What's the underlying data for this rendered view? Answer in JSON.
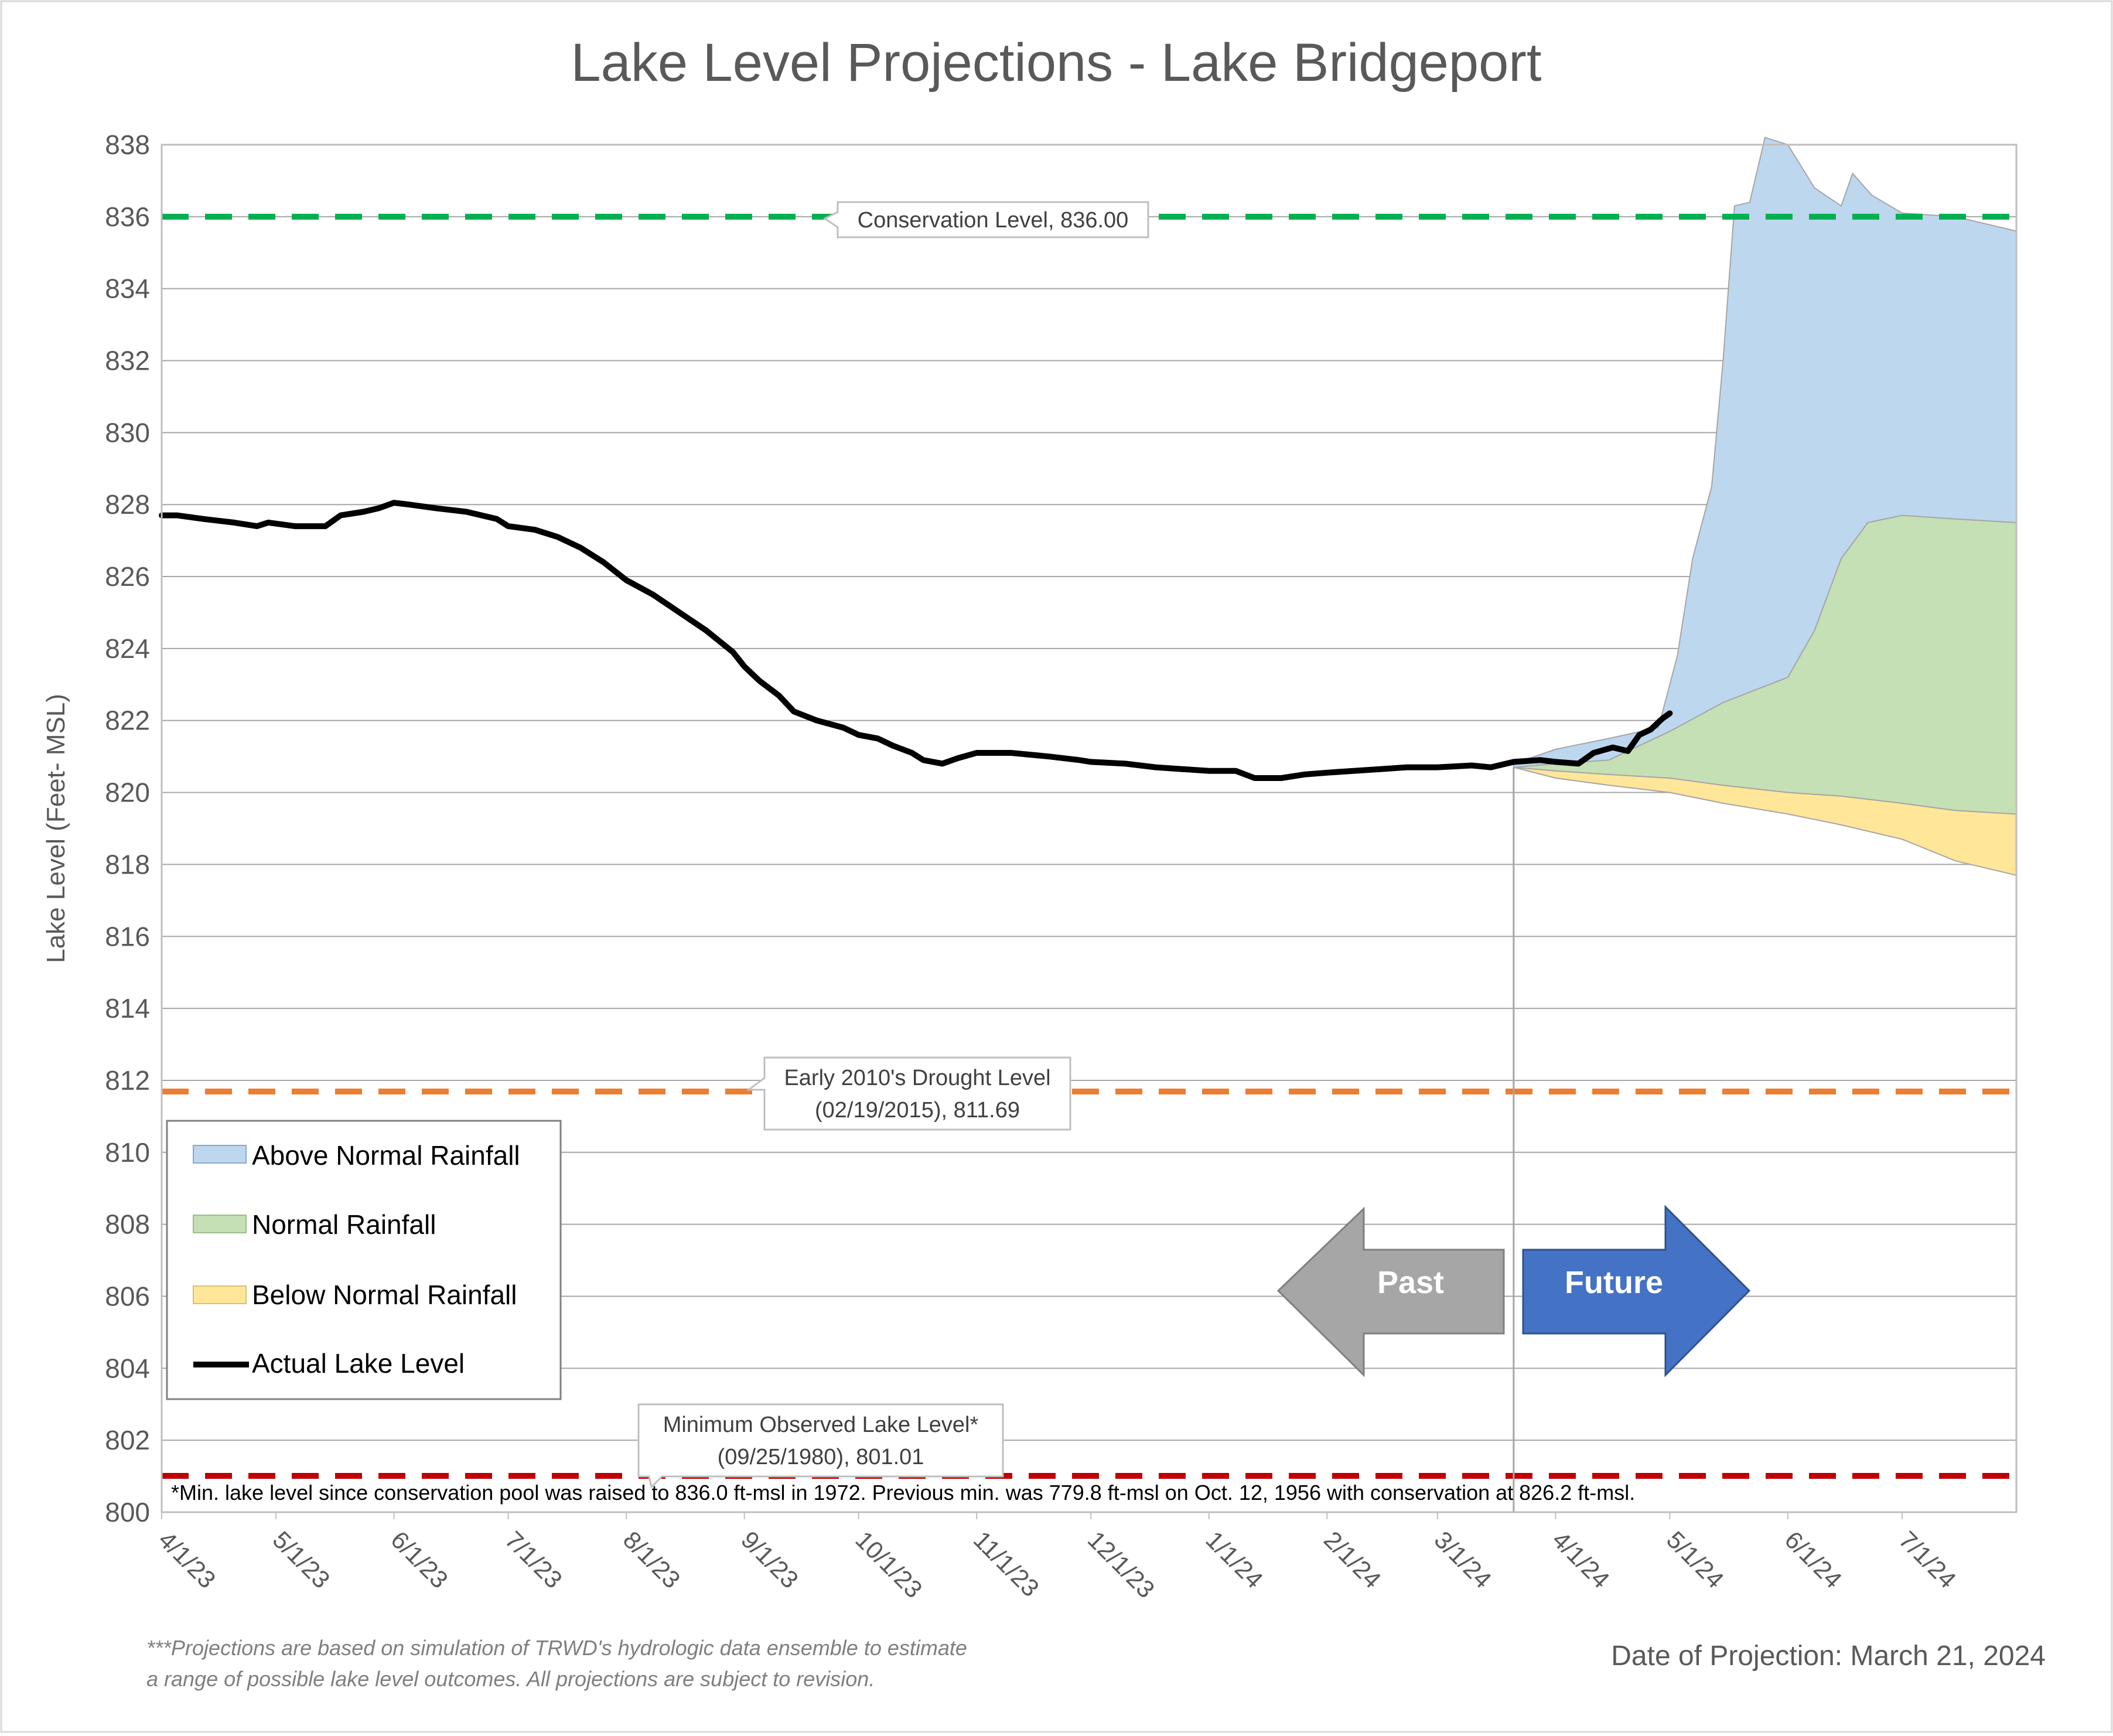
{
  "chart_data": {
    "type": "area",
    "title": "Lake Level Projections - Lake Bridgeport",
    "ylabel": "Lake Level (Feet- MSL)",
    "xlabel": "",
    "ylim": [
      800,
      838
    ],
    "y_ticks": [
      800,
      802,
      804,
      806,
      808,
      810,
      812,
      814,
      816,
      818,
      820,
      822,
      824,
      826,
      828,
      830,
      832,
      834,
      836,
      838
    ],
    "x_range": [
      "2023-04-01",
      "2024-07-31"
    ],
    "x_ticks": [
      {
        "date": "2023-04-01",
        "label": "4/1/23"
      },
      {
        "date": "2023-05-01",
        "label": "5/1/23"
      },
      {
        "date": "2023-06-01",
        "label": "6/1/23"
      },
      {
        "date": "2023-07-01",
        "label": "7/1/23"
      },
      {
        "date": "2023-08-01",
        "label": "8/1/23"
      },
      {
        "date": "2023-09-01",
        "label": "9/1/23"
      },
      {
        "date": "2023-10-01",
        "label": "10/1/23"
      },
      {
        "date": "2023-11-01",
        "label": "11/1/23"
      },
      {
        "date": "2023-12-01",
        "label": "12/1/23"
      },
      {
        "date": "2024-01-01",
        "label": "1/1/24"
      },
      {
        "date": "2024-02-01",
        "label": "2/1/24"
      },
      {
        "date": "2024-03-01",
        "label": "3/1/24"
      },
      {
        "date": "2024-04-01",
        "label": "4/1/24"
      },
      {
        "date": "2024-05-01",
        "label": "5/1/24"
      },
      {
        "date": "2024-06-01",
        "label": "6/1/24"
      },
      {
        "date": "2024-07-01",
        "label": "7/1/24"
      }
    ],
    "grid": "horizontal",
    "legend_position": "lower-left",
    "series": [
      {
        "name": "Actual Lake Level",
        "color": "#000000",
        "points": [
          [
            "2023-04-01",
            827.7
          ],
          [
            "2023-04-05",
            827.7
          ],
          [
            "2023-04-12",
            827.6
          ],
          [
            "2023-04-20",
            827.5
          ],
          [
            "2023-04-26",
            827.4
          ],
          [
            "2023-04-29",
            827.5
          ],
          [
            "2023-05-06",
            827.4
          ],
          [
            "2023-05-14",
            827.4
          ],
          [
            "2023-05-18",
            827.7
          ],
          [
            "2023-05-24",
            827.8
          ],
          [
            "2023-05-28",
            827.9
          ],
          [
            "2023-06-01",
            828.05
          ],
          [
            "2023-06-05",
            828.0
          ],
          [
            "2023-06-12",
            827.9
          ],
          [
            "2023-06-20",
            827.8
          ],
          [
            "2023-06-28",
            827.6
          ],
          [
            "2023-07-01",
            827.4
          ],
          [
            "2023-07-08",
            827.3
          ],
          [
            "2023-07-14",
            827.1
          ],
          [
            "2023-07-20",
            826.8
          ],
          [
            "2023-07-26",
            826.4
          ],
          [
            "2023-08-01",
            825.9
          ],
          [
            "2023-08-08",
            825.5
          ],
          [
            "2023-08-15",
            825.0
          ],
          [
            "2023-08-22",
            824.5
          ],
          [
            "2023-08-29",
            823.9
          ],
          [
            "2023-09-01",
            823.5
          ],
          [
            "2023-09-05",
            823.1
          ],
          [
            "2023-09-10",
            822.7
          ],
          [
            "2023-09-14",
            822.25
          ],
          [
            "2023-09-20",
            822.0
          ],
          [
            "2023-09-27",
            821.8
          ],
          [
            "2023-10-01",
            821.6
          ],
          [
            "2023-10-06",
            821.5
          ],
          [
            "2023-10-10",
            821.3
          ],
          [
            "2023-10-15",
            821.1
          ],
          [
            "2023-10-18",
            820.9
          ],
          [
            "2023-10-23",
            820.8
          ],
          [
            "2023-10-27",
            820.95
          ],
          [
            "2023-11-01",
            821.1
          ],
          [
            "2023-11-10",
            821.1
          ],
          [
            "2023-11-20",
            821.0
          ],
          [
            "2023-11-28",
            820.9
          ],
          [
            "2023-12-01",
            820.85
          ],
          [
            "2023-12-10",
            820.8
          ],
          [
            "2023-12-18",
            820.7
          ],
          [
            "2023-12-25",
            820.65
          ],
          [
            "2024-01-01",
            820.6
          ],
          [
            "2024-01-08",
            820.6
          ],
          [
            "2024-01-13",
            820.4
          ],
          [
            "2024-01-20",
            820.4
          ],
          [
            "2024-01-26",
            820.5
          ],
          [
            "2024-02-01",
            820.55
          ],
          [
            "2024-02-08",
            820.6
          ],
          [
            "2024-02-15",
            820.65
          ],
          [
            "2024-02-22",
            820.7
          ],
          [
            "2024-03-01",
            820.7
          ],
          [
            "2024-03-10",
            820.75
          ],
          [
            "2024-03-15",
            820.7
          ],
          [
            "2024-03-21",
            820.85
          ],
          [
            "2024-03-28",
            820.9
          ],
          [
            "2024-04-01",
            820.85
          ],
          [
            "2024-04-07",
            820.8
          ],
          [
            "2024-04-11",
            821.1
          ],
          [
            "2024-04-16",
            821.25
          ],
          [
            "2024-04-20",
            821.15
          ],
          [
            "2024-04-23",
            821.6
          ],
          [
            "2024-04-26",
            821.75
          ],
          [
            "2024-04-29",
            822.05
          ],
          [
            "2024-05-01",
            822.2
          ]
        ]
      },
      {
        "name": "Below Normal Rainfall",
        "color": "#FFE699",
        "upper": [
          [
            "2024-03-21",
            820.7
          ],
          [
            "2024-04-01",
            820.6
          ],
          [
            "2024-04-15",
            820.5
          ],
          [
            "2024-05-01",
            820.4
          ],
          [
            "2024-05-15",
            820.2
          ],
          [
            "2024-06-01",
            820.0
          ],
          [
            "2024-06-15",
            819.9
          ],
          [
            "2024-07-01",
            819.7
          ],
          [
            "2024-07-15",
            819.5
          ],
          [
            "2024-07-31",
            819.4
          ]
        ],
        "lower": [
          [
            "2024-03-21",
            820.7
          ],
          [
            "2024-04-01",
            820.4
          ],
          [
            "2024-04-15",
            820.2
          ],
          [
            "2024-05-01",
            820.0
          ],
          [
            "2024-05-15",
            819.7
          ],
          [
            "2024-06-01",
            819.4
          ],
          [
            "2024-06-15",
            819.1
          ],
          [
            "2024-07-01",
            818.7
          ],
          [
            "2024-07-15",
            818.1
          ],
          [
            "2024-07-31",
            817.7
          ]
        ]
      },
      {
        "name": "Normal Rainfall",
        "color": "#C5E0B4",
        "upper": [
          [
            "2024-03-21",
            820.7
          ],
          [
            "2024-04-01",
            820.8
          ],
          [
            "2024-04-15",
            820.9
          ],
          [
            "2024-05-01",
            821.7
          ],
          [
            "2024-05-15",
            822.5
          ],
          [
            "2024-06-01",
            823.2
          ],
          [
            "2024-06-08",
            824.5
          ],
          [
            "2024-06-15",
            826.5
          ],
          [
            "2024-06-22",
            827.5
          ],
          [
            "2024-07-01",
            827.7
          ],
          [
            "2024-07-15",
            827.6
          ],
          [
            "2024-07-31",
            827.5
          ]
        ],
        "lower": [
          [
            "2024-03-21",
            820.7
          ],
          [
            "2024-04-01",
            820.6
          ],
          [
            "2024-04-15",
            820.5
          ],
          [
            "2024-05-01",
            820.4
          ],
          [
            "2024-05-15",
            820.2
          ],
          [
            "2024-06-01",
            820.0
          ],
          [
            "2024-06-15",
            819.9
          ],
          [
            "2024-07-01",
            819.7
          ],
          [
            "2024-07-15",
            819.5
          ],
          [
            "2024-07-31",
            819.4
          ]
        ]
      },
      {
        "name": "Above Normal Rainfall",
        "color": "#BDD7EE",
        "upper": [
          [
            "2024-03-21",
            820.8
          ],
          [
            "2024-04-01",
            821.2
          ],
          [
            "2024-04-15",
            821.5
          ],
          [
            "2024-04-28",
            821.8
          ],
          [
            "2024-05-03",
            823.8
          ],
          [
            "2024-05-07",
            826.5
          ],
          [
            "2024-05-12",
            828.5
          ],
          [
            "2024-05-15",
            832.0
          ],
          [
            "2024-05-18",
            836.3
          ],
          [
            "2024-05-22",
            836.4
          ],
          [
            "2024-05-26",
            838.2
          ],
          [
            "2024-06-01",
            838.0
          ],
          [
            "2024-06-08",
            836.8
          ],
          [
            "2024-06-15",
            836.3
          ],
          [
            "2024-06-18",
            837.2
          ],
          [
            "2024-06-23",
            836.6
          ],
          [
            "2024-07-01",
            836.1
          ],
          [
            "2024-07-15",
            836.0
          ],
          [
            "2024-07-31",
            835.6
          ]
        ],
        "lower": [
          [
            "2024-03-21",
            820.7
          ],
          [
            "2024-04-01",
            820.8
          ],
          [
            "2024-04-15",
            820.9
          ],
          [
            "2024-05-01",
            821.7
          ],
          [
            "2024-05-15",
            822.5
          ],
          [
            "2024-06-01",
            823.2
          ],
          [
            "2024-06-08",
            824.5
          ],
          [
            "2024-06-15",
            826.5
          ],
          [
            "2024-06-22",
            827.5
          ],
          [
            "2024-07-01",
            827.7
          ],
          [
            "2024-07-15",
            827.6
          ],
          [
            "2024-07-31",
            827.5
          ]
        ]
      }
    ],
    "reference_lines": [
      {
        "id": "conservation",
        "label": "Conservation Level, 836.00",
        "value": 836.0,
        "color": "#00B050"
      },
      {
        "id": "drought",
        "label_line1": "Early 2010's Drought Level",
        "label_line2": "(02/19/2015), 811.69",
        "value": 811.69,
        "color": "#ED7D31"
      },
      {
        "id": "minimum",
        "label_line1": "Minimum Observed Lake Level*",
        "label_line2": "(09/25/1980), 801.01",
        "value": 801.01,
        "color": "#C00000"
      }
    ],
    "projection_date": "2024-03-21",
    "legend": [
      {
        "label": "Above Normal Rainfall",
        "color": "#BDD7EE",
        "kind": "area"
      },
      {
        "label": "Normal Rainfall",
        "color": "#C5E0B4",
        "kind": "area"
      },
      {
        "label": "Below Normal Rainfall",
        "color": "#FFE699",
        "kind": "area"
      },
      {
        "label": "Actual Lake Level",
        "color": "#000000",
        "kind": "line"
      }
    ]
  },
  "arrows": {
    "past_label": "Past",
    "past_color": "#A6A6A6",
    "future_label": "Future",
    "future_color": "#4472C4"
  },
  "footnote": "*Min. lake level since conservation pool was raised to 836.0 ft-msl in 1972.  Previous min. was 779.8 ft-msl on Oct. 12, 1956 with conservation at 826.2 ft-msl.",
  "disclaimer_line1": "***Projections are based on simulation of TRWD's hydrologic data ensemble to estimate",
  "disclaimer_line2": "a range of possible lake level outcomes.  All projections are subject to revision.",
  "projection_date_label": "Date of Projection: March 21, 2024"
}
